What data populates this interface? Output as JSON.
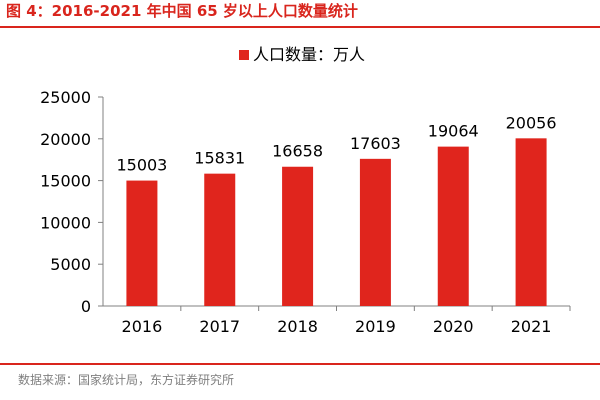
{
  "figure": {
    "title": "图 4：2016-2021 年中国 65 岁以上人口数量统计",
    "source": "数据来源：国家统计局，东方证券研究所"
  },
  "colors": {
    "accent": "#d9251d",
    "bar": "#e0251d",
    "source_text": "#7f7f7f"
  },
  "chart_data": {
    "type": "bar",
    "title": "",
    "xlabel": "",
    "ylabel": "",
    "categories": [
      "2016",
      "2017",
      "2018",
      "2019",
      "2020",
      "2021"
    ],
    "series": [
      {
        "name": "人口数量：万人",
        "values": [
          15003,
          15831,
          16658,
          17603,
          19064,
          20056
        ]
      }
    ],
    "ylim": [
      0,
      25000
    ],
    "yticks": [
      "0",
      "5000",
      "10000",
      "15000",
      "20000",
      "25000"
    ],
    "grid": false,
    "legend": "top-center",
    "data_labels": true
  }
}
